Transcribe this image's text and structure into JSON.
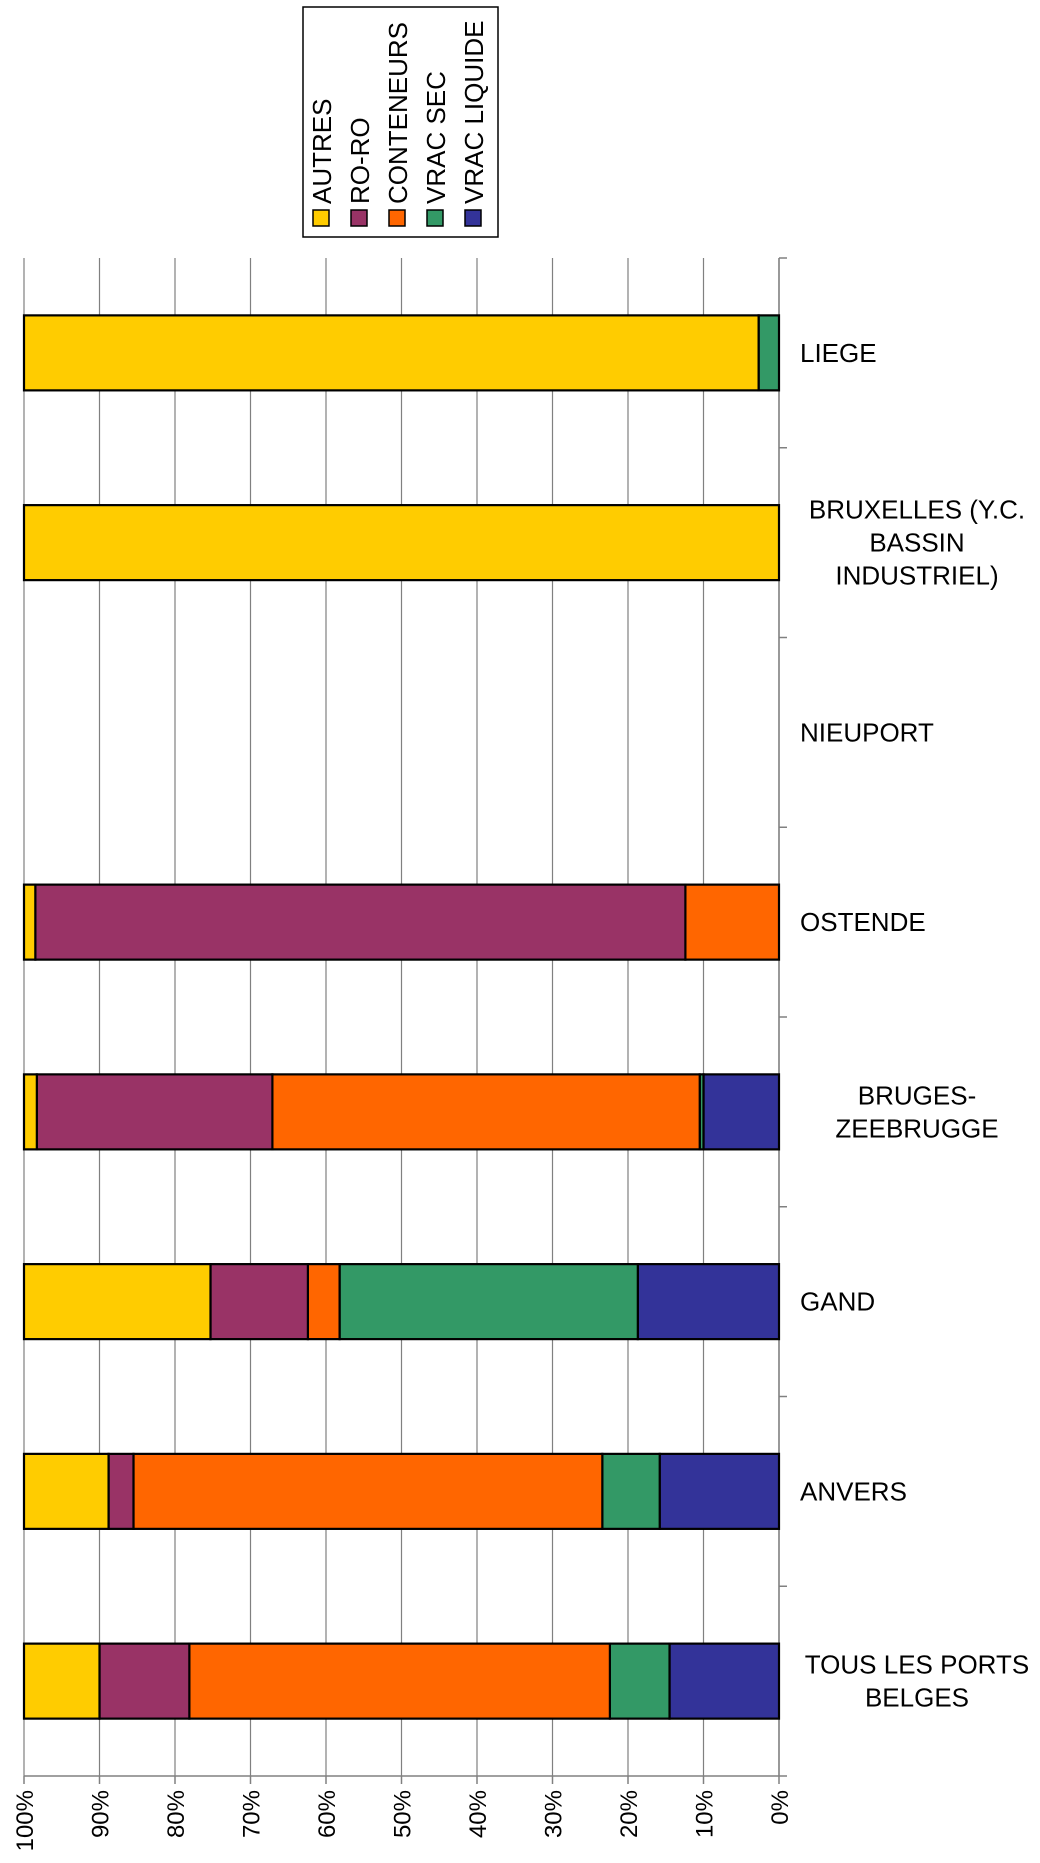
{
  "chart_data": {
    "type": "bar",
    "orientation": "horizontal-stacked-100",
    "x_reversed": true,
    "xlim": [
      0,
      100
    ],
    "grid": true,
    "legend_position": "top",
    "categories": [
      "LIEGE",
      "BRUXELLES (Y.C. BASSIN INDUSTRIEL)",
      "NIEUPORT",
      "OSTENDE",
      "BRUGES-ZEEBRUGGE",
      "GAND",
      "ANVERS",
      "TOUS LES PORTS BELGES"
    ],
    "category_lines": [
      [
        "LIEGE"
      ],
      [
        "BRUXELLES (Y.C.",
        "BASSIN",
        "INDUSTRIEL)"
      ],
      [
        "NIEUPORT"
      ],
      [
        "OSTENDE"
      ],
      [
        "BRUGES-",
        "ZEEBRUGGE"
      ],
      [
        "GAND"
      ],
      [
        "ANVERS"
      ],
      [
        "TOUS LES PORTS",
        "BELGES"
      ]
    ],
    "x_ticks": [
      "0%",
      "10%",
      "20%",
      "30%",
      "40%",
      "50%",
      "60%",
      "70%",
      "80%",
      "90%",
      "100%"
    ],
    "series": [
      {
        "name": "VRAC LIQUIDE",
        "color": "#333399",
        "values": [
          0,
          0,
          0,
          0,
          10,
          18.7,
          15.8,
          14.5
        ]
      },
      {
        "name": "VRAC SEC",
        "color": "#339966",
        "values": [
          2.7,
          0,
          0,
          0,
          0.5,
          39.5,
          7.6,
          7.9
        ]
      },
      {
        "name": "CONTENEURS",
        "color": "#ff6600",
        "values": [
          0,
          0,
          0,
          12.4,
          56.6,
          4.2,
          62.1,
          55.7
        ]
      },
      {
        "name": "RO-RO",
        "color": "#993366",
        "values": [
          0,
          0,
          0,
          86.1,
          31.2,
          12.9,
          3.3,
          11.9
        ]
      },
      {
        "name": "AUTRES",
        "color": "#ffcc00",
        "values": [
          97.3,
          100,
          0,
          1.5,
          1.7,
          24.7,
          11.2,
          10
        ]
      }
    ],
    "legend_order": [
      "AUTRES",
      "RO-RO",
      "CONTENEURS",
      "VRAC SEC",
      "VRAC LIQUIDE"
    ]
  }
}
